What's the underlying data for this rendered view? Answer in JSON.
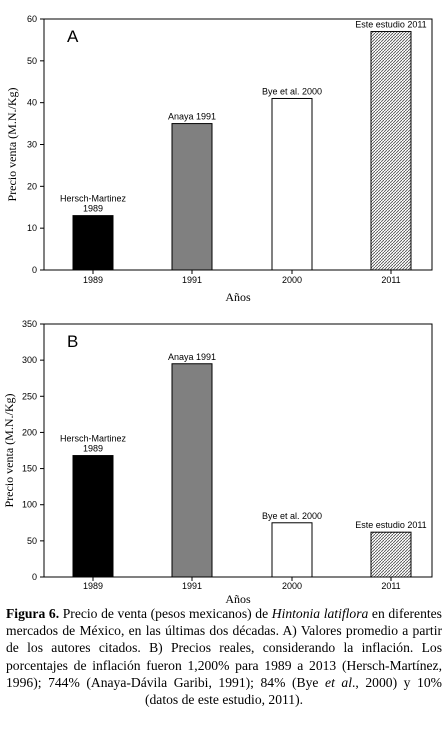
{
  "chart_data": [
    {
      "panel_label": "A",
      "type": "bar",
      "categories": [
        "1989",
        "1991",
        "2000",
        "2011"
      ],
      "values": [
        13,
        35,
        41,
        57
      ],
      "bar_labels": [
        [
          "Hersch-Martinez",
          "1989"
        ],
        [
          "Anaya 1991"
        ],
        [
          "Bye et al. 2000"
        ],
        [
          "Este estudio 2011"
        ]
      ],
      "bar_fills": [
        "solid-black",
        "solid-gray",
        "white",
        "hatched"
      ],
      "ylim": [
        0,
        60
      ],
      "yticks": [
        "0",
        "10",
        "20",
        "30",
        "40",
        "50",
        "60"
      ],
      "xlabel": "Años",
      "ylabel": "Precio venta (M.N./Kg)"
    },
    {
      "panel_label": "B",
      "type": "bar",
      "categories": [
        "1989",
        "1991",
        "2000",
        "2011"
      ],
      "values": [
        168,
        295,
        75,
        62
      ],
      "bar_labels": [
        [
          "Hersch-Martinez",
          "1989"
        ],
        [
          "Anaya 1991"
        ],
        [
          "Bye et al. 2000"
        ],
        [
          "Este estudio 2011"
        ]
      ],
      "bar_fills": [
        "solid-black",
        "solid-gray",
        "white",
        "hatched"
      ],
      "ylim": [
        0,
        350
      ],
      "yticks": [
        "0",
        "50",
        "100",
        "150",
        "200",
        "250",
        "300",
        "350"
      ],
      "xlabel": "Años",
      "ylabel": "Precio venta (M.N./Kg)"
    }
  ],
  "colors": {
    "black_bar": "#000000",
    "gray_bar": "#808080",
    "white_bar": "#ffffff",
    "hatch": "#555555"
  },
  "caption": {
    "label": "Figura 6.",
    "text1": " Precio de venta (pesos mexicanos) de ",
    "italic": "Hintonia latiflora",
    "text2": " en diferentes mercados de México, en las últimas dos décadas. A) Valores promedio a partir de los autores citados. B) Precios reales, considerando la inflación. Los porcentajes de inflación fueron 1,200% para 1989 a 2013 (Hersch-Martínez, 1996); 744% (Anaya-Dávila Garibi, 1991); 84% (Bye ",
    "etal1": "et al",
    "text3": "., 2000) y 10% (datos de este estudio, 2011)."
  }
}
